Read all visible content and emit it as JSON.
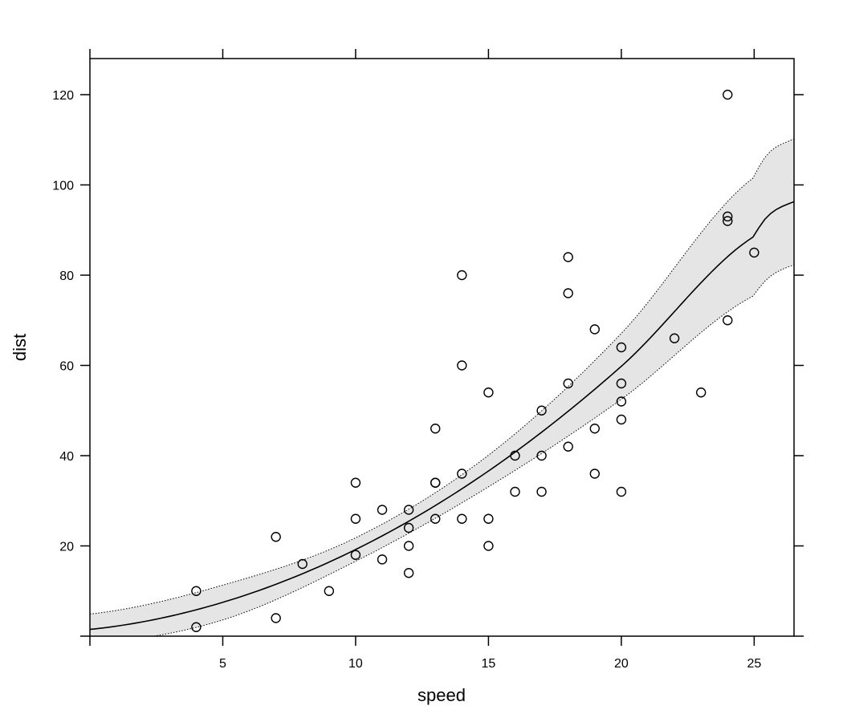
{
  "chart_data": {
    "type": "scatter",
    "title": "",
    "xlabel": "speed",
    "ylabel": "dist",
    "xlim": [
      0,
      26.5
    ],
    "ylim": [
      0,
      128
    ],
    "x_ticks": [
      5,
      10,
      15,
      20,
      25
    ],
    "y_ticks": [
      20,
      40,
      60,
      80,
      100,
      120
    ],
    "x_tick_labels": [
      "5",
      "10",
      "15",
      "20",
      "25"
    ],
    "y_tick_labels": [
      "20",
      "40",
      "60",
      "80",
      "100",
      "120"
    ],
    "grid": false,
    "legend": "none",
    "points": [
      {
        "x": 4,
        "y": 2
      },
      {
        "x": 4,
        "y": 10
      },
      {
        "x": 7,
        "y": 4
      },
      {
        "x": 7,
        "y": 22
      },
      {
        "x": 8,
        "y": 16
      },
      {
        "x": 9,
        "y": 10
      },
      {
        "x": 10,
        "y": 18
      },
      {
        "x": 10,
        "y": 26
      },
      {
        "x": 10,
        "y": 34
      },
      {
        "x": 11,
        "y": 17
      },
      {
        "x": 11,
        "y": 28
      },
      {
        "x": 12,
        "y": 14
      },
      {
        "x": 12,
        "y": 20
      },
      {
        "x": 12,
        "y": 24
      },
      {
        "x": 12,
        "y": 28
      },
      {
        "x": 13,
        "y": 26
      },
      {
        "x": 13,
        "y": 34
      },
      {
        "x": 13,
        "y": 34
      },
      {
        "x": 13,
        "y": 46
      },
      {
        "x": 14,
        "y": 26
      },
      {
        "x": 14,
        "y": 36
      },
      {
        "x": 14,
        "y": 60
      },
      {
        "x": 14,
        "y": 80
      },
      {
        "x": 15,
        "y": 20
      },
      {
        "x": 15,
        "y": 26
      },
      {
        "x": 15,
        "y": 54
      },
      {
        "x": 16,
        "y": 32
      },
      {
        "x": 16,
        "y": 40
      },
      {
        "x": 17,
        "y": 32
      },
      {
        "x": 17,
        "y": 40
      },
      {
        "x": 17,
        "y": 50
      },
      {
        "x": 18,
        "y": 42
      },
      {
        "x": 18,
        "y": 56
      },
      {
        "x": 18,
        "y": 76
      },
      {
        "x": 18,
        "y": 84
      },
      {
        "x": 19,
        "y": 36
      },
      {
        "x": 19,
        "y": 46
      },
      {
        "x": 19,
        "y": 68
      },
      {
        "x": 20,
        "y": 32
      },
      {
        "x": 20,
        "y": 48
      },
      {
        "x": 20,
        "y": 52
      },
      {
        "x": 20,
        "y": 56
      },
      {
        "x": 20,
        "y": 64
      },
      {
        "x": 22,
        "y": 66
      },
      {
        "x": 23,
        "y": 54
      },
      {
        "x": 24,
        "y": 70
      },
      {
        "x": 24,
        "y": 92
      },
      {
        "x": 24,
        "y": 93
      },
      {
        "x": 24,
        "y": 120
      },
      {
        "x": 25,
        "y": 85
      }
    ],
    "fit_curve": {
      "x": [
        0,
        5,
        10,
        15,
        20,
        25,
        26.5
      ],
      "y": [
        1.5,
        7.5,
        19.2,
        36.6,
        59.8,
        88.6,
        96.3
      ]
    },
    "confidence_band": {
      "x": [
        0,
        5,
        10,
        15,
        20,
        25,
        26.5
      ],
      "lower": [
        -1.8,
        3.6,
        16.6,
        33.1,
        52.5,
        75.5,
        82.3
      ],
      "upper": [
        4.9,
        11.3,
        21.8,
        40.1,
        67.1,
        101.7,
        110.2
      ]
    },
    "colors": {
      "points": "#000000",
      "fit_line": "#000000",
      "band_fill": "#e5e5e5",
      "band_edge": "#000000"
    }
  }
}
